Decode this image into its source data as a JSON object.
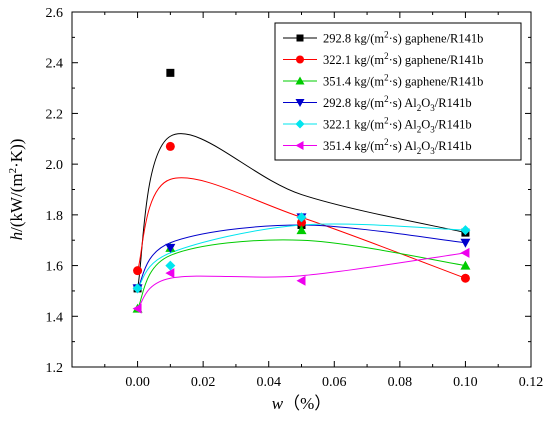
{
  "chart_data": {
    "type": "scatter",
    "title": "",
    "xlabel": {
      "base": "w",
      "suffix": "（%）"
    },
    "ylabel": {
      "base": "h",
      "unit_open": "/(kW/(m",
      "sup": "2",
      "unit_close": "·K))"
    },
    "xlim": [
      -0.02,
      0.12
    ],
    "ylim": [
      1.2,
      2.6
    ],
    "x_ticks": [
      0.0,
      0.02,
      0.04,
      0.06,
      0.08,
      0.1,
      0.12
    ],
    "y_ticks": [
      1.2,
      1.4,
      1.6,
      1.8,
      2.0,
      2.2,
      2.4,
      2.6
    ],
    "x_tick_labels": [
      "0.00",
      "0.02",
      "0.04",
      "0.06",
      "0.08",
      "0.10",
      "0.12"
    ],
    "y_tick_labels": [
      "1.2",
      "1.4",
      "1.6",
      "1.8",
      "2.0",
      "2.2",
      "2.4",
      "2.6"
    ],
    "grid": false,
    "legend_position": "top-right",
    "series": [
      {
        "legend": {
          "pre": "292.8 kg/(m",
          "sup": "2",
          "mid": "·s) gaphene/R141b",
          "sub": "",
          "post": ""
        },
        "color": "#000000",
        "marker": "square",
        "x": [
          0.0,
          0.01,
          0.05,
          0.1
        ],
        "y": [
          1.51,
          2.36,
          1.76,
          1.73
        ],
        "curve_y": [
          1.51,
          2.11,
          1.88,
          1.73
        ]
      },
      {
        "legend": {
          "pre": "322.1 kg/(m",
          "sup": "2",
          "mid": "·s) gaphene/R141b",
          "sub": "",
          "post": ""
        },
        "color": "#ff0000",
        "marker": "circle",
        "x": [
          0.0,
          0.01,
          0.05,
          0.1
        ],
        "y": [
          1.58,
          2.07,
          1.77,
          1.55
        ],
        "curve_y": [
          1.58,
          1.94,
          1.79,
          1.55
        ]
      },
      {
        "legend": {
          "pre": "351.4 kg/(m",
          "sup": "2",
          "mid": "·s) gaphene/R141b",
          "sub": "",
          "post": ""
        },
        "color": "#00cc00",
        "marker": "triangle-up",
        "x": [
          0.0,
          0.01,
          0.05,
          0.1
        ],
        "y": [
          1.43,
          1.67,
          1.74,
          1.6
        ],
        "curve_y": [
          1.43,
          1.64,
          1.7,
          1.6
        ]
      },
      {
        "legend": {
          "pre": "292.8 kg/(m",
          "sup": "2",
          "mid": "·s) Al",
          "sub": "2",
          "post": "O",
          "sub2": "3",
          "post2": "/R141b"
        },
        "color": "#0000cc",
        "marker": "triangle-down",
        "x": [
          0.0,
          0.01,
          0.05,
          0.1
        ],
        "y": [
          1.51,
          1.67,
          1.79,
          1.69
        ],
        "curve_y": [
          1.51,
          1.69,
          1.76,
          1.69
        ]
      },
      {
        "legend": {
          "pre": "322.1 kg/(m",
          "sup": "2",
          "mid": "·s) Al",
          "sub": "2",
          "post": "O",
          "sub2": "3",
          "post2": "/R141b"
        },
        "color": "#00e5ee",
        "marker": "diamond",
        "x": [
          0.0,
          0.01,
          0.05,
          0.1
        ],
        "y": [
          1.51,
          1.6,
          1.79,
          1.74
        ],
        "curve_y": [
          1.51,
          1.65,
          1.76,
          1.74
        ]
      },
      {
        "legend": {
          "pre": "351.4 kg/(m",
          "sup": "2",
          "mid": "·s) Al",
          "sub": "2",
          "post": "O",
          "sub2": "3",
          "post2": "/R141b"
        },
        "color": "#ee00ee",
        "marker": "triangle-left",
        "x": [
          0.0,
          0.01,
          0.05,
          0.1
        ],
        "y": [
          1.43,
          1.57,
          1.54,
          1.65
        ],
        "curve_y": [
          1.43,
          1.55,
          1.56,
          1.65
        ]
      }
    ]
  }
}
